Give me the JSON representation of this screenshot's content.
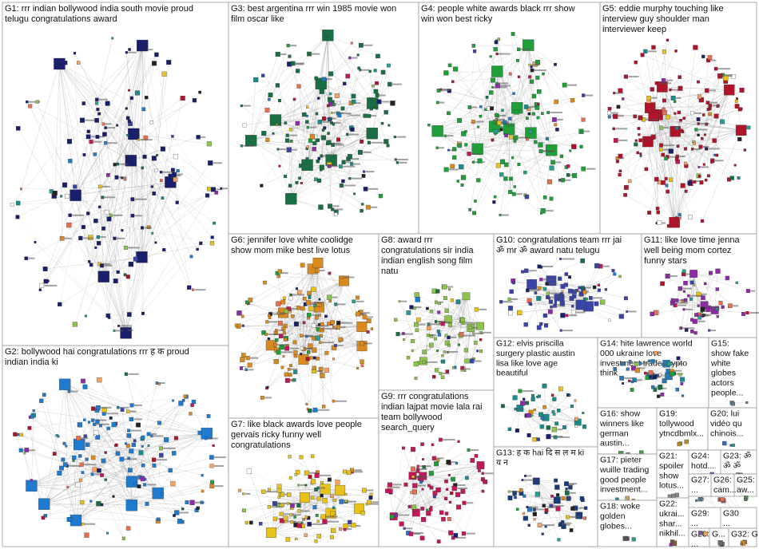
{
  "groups": [
    {
      "id": "G1",
      "label_lines": [
        "G1: rrr indian bollywood india south movie proud",
        "telugu congratulations award"
      ],
      "hub_color": "#1a1f6b"
    },
    {
      "id": "G2",
      "label_lines": [
        "G2: bollywood hai congratulations rrr ह क proud",
        "indian india ki"
      ],
      "hub_color": "#1e7bd0"
    },
    {
      "id": "G3",
      "label_lines": [
        "G3: best argentina rrr win 1985 movie won",
        "film oscar like"
      ],
      "hub_color": "#1a6e43"
    },
    {
      "id": "G4",
      "label_lines": [
        "G4: people white awards black rrr show",
        "win won best ricky"
      ],
      "hub_color": "#1f9e3a"
    },
    {
      "id": "G5",
      "label_lines": [
        "G5: eddie murphy touching like",
        "interview guy shoulder man",
        "interviewer keep"
      ],
      "hub_color": "#b0142a"
    },
    {
      "id": "G6",
      "label_lines": [
        "G6: jennifer love white coolidge",
        "show mom mike best live lotus"
      ],
      "hub_color": "#d98a1f"
    },
    {
      "id": "G7",
      "label_lines": [
        "G7: like black awards love people",
        "gervais ricky funny well",
        "congratulations"
      ],
      "hub_color": "#e7c21b"
    },
    {
      "id": "G8",
      "label_lines": [
        "G8: award rrr",
        "congratulations sir india",
        "indian english song film",
        "natu"
      ],
      "hub_color": "#8cc34a"
    },
    {
      "id": "G9",
      "label_lines": [
        "G9: rrr congratulations",
        "indian lajpat movie lala rai",
        "team bollywood",
        "search_query"
      ],
      "hub_color": "#c2185b"
    },
    {
      "id": "G10",
      "label_lines": [
        "G10: congratulations team rrr jai",
        "ॐ mr ॐ award natu telugu"
      ],
      "hub_color": "#3a44a8"
    },
    {
      "id": "G11",
      "label_lines": [
        "G11: like love time jenna",
        "well being mom cortez",
        "funny stars"
      ],
      "hub_color": "#8e2aa8"
    },
    {
      "id": "G12",
      "label_lines": [
        "G12: elvis priscilla",
        "surgery plastic austin",
        "lisa like love age",
        "beautiful"
      ],
      "hub_color": "#1d8a8a"
    },
    {
      "id": "G13",
      "label_lines": [
        "G13: ह क hai दि स ल म ki",
        "य न"
      ],
      "hub_color": "#1a3a7a"
    },
    {
      "id": "G14",
      "label_lines": [
        "G14: hite lawrence world",
        "000 ukraine love",
        "investment trade crypto",
        "think"
      ],
      "hub_color": "#2a7ab0"
    },
    {
      "id": "G15",
      "label_lines": [
        "G15:",
        "show fake",
        "white",
        "globes",
        "actors",
        "people..."
      ],
      "hub_color": "#607d8b"
    },
    {
      "id": "G16",
      "label_lines": [
        "G16: show",
        "winners like",
        "german",
        "austin..."
      ],
      "hub_color": "#4a9a4a"
    },
    {
      "id": "G17",
      "label_lines": [
        "G17: pieter",
        "wuille trading",
        "good people",
        "investment..."
      ],
      "hub_color": "#c0a060"
    },
    {
      "id": "G18",
      "label_lines": [
        "G18: woke",
        "golden",
        "globes..."
      ],
      "hub_color": "#555555"
    },
    {
      "id": "G19",
      "label_lines": [
        "G19:",
        "tollywood",
        "ytncdbmlx..."
      ],
      "hub_color": "#b88a2a"
    },
    {
      "id": "G20",
      "label_lines": [
        "G20: lui",
        "vidéo qu",
        "chinois..."
      ],
      "hub_color": "#3a6ab0"
    },
    {
      "id": "G21",
      "label_lines": [
        "G21:",
        "spoiler",
        "show",
        "lotus..."
      ],
      "hub_color": "#888888"
    },
    {
      "id": "G22",
      "label_lines": [
        "G22:",
        "ukrai...",
        "shar...",
        "nikhil..."
      ],
      "hub_color": "#7a5a3a"
    },
    {
      "id": "G23",
      "label_lines": [
        "G23: ॐ",
        "ॐ ॐ"
      ],
      "hub_color": "#aa6688"
    },
    {
      "id": "G24",
      "label_lines": [
        "G24:",
        "hotd..."
      ],
      "hub_color": "#5a5a9a"
    },
    {
      "id": "G25",
      "label_lines": [
        "G25:",
        "aw..."
      ],
      "hub_color": "#5a8a5a"
    },
    {
      "id": "G26",
      "label_lines": [
        "G26:",
        "cam..."
      ],
      "hub_color": "#8a5a5a"
    },
    {
      "id": "G27",
      "label_lines": [
        "G27:",
        "..."
      ],
      "hub_color": "#5a7a8a"
    },
    {
      "id": "G28",
      "label_lines": [
        "G28:",
        "..."
      ],
      "hub_color": "#8a8a5a"
    },
    {
      "id": "G29",
      "label_lines": [
        "G29:",
        "..."
      ],
      "hub_color": "#7a5a8a"
    },
    {
      "id": "G30",
      "label_lines": [
        "G30",
        "..."
      ],
      "hub_color": "#5a8a8a"
    },
    {
      "id": "G31",
      "label_lines": [
        "G..."
      ],
      "hub_color": "#6a6a6a"
    },
    {
      "id": "G32",
      "label_lines": [
        "G32: G..."
      ],
      "hub_color": "#8a6a4a"
    }
  ],
  "colors": {
    "border": "#9a9a9a",
    "edge": "#9a9a9a",
    "inter_edge_highlight": "#c0303a",
    "palette": [
      "#1a1f6b",
      "#1e7bd0",
      "#1a6e43",
      "#1f9e3a",
      "#b0142a",
      "#d98a1f",
      "#e7c21b",
      "#8cc34a",
      "#c2185b",
      "#3a44a8",
      "#8e2aa8",
      "#1d8a8a",
      "#ffffff",
      "#222222",
      "#f4a261",
      "#2a9d8f",
      "#e76f51"
    ]
  }
}
